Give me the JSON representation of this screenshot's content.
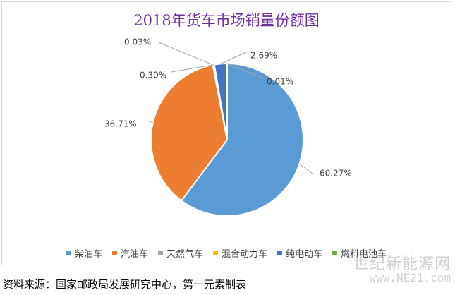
{
  "chart_data": {
    "type": "pie",
    "title": "2018年货车市场销量份额图",
    "slices": [
      {
        "name": "柴油车",
        "value": 60.27,
        "label": "60.27%",
        "color": "#5b9bd5"
      },
      {
        "name": "汽油车",
        "value": 36.71,
        "label": "36.71%",
        "color": "#ed7d31"
      },
      {
        "name": "天然气车",
        "value": 0.03,
        "label": "0.03%",
        "color": "#a5a5a5"
      },
      {
        "name": "混合动力车",
        "value": 0.3,
        "label": "0.30%",
        "color": "#ffc000"
      },
      {
        "name": "纯电动车",
        "value": 2.69,
        "label": "2.69%",
        "color": "#4472c4"
      },
      {
        "name": "燃料电池车",
        "value": 0.01,
        "label": "0.01%",
        "color": "#70ad47"
      }
    ],
    "legend_position": "bottom"
  },
  "source": "资料来源：国家邮政局发展研究中心，第一元素制表",
  "watermark": {
    "text": "世纪新能源网",
    "url": "www.NE21.com"
  }
}
